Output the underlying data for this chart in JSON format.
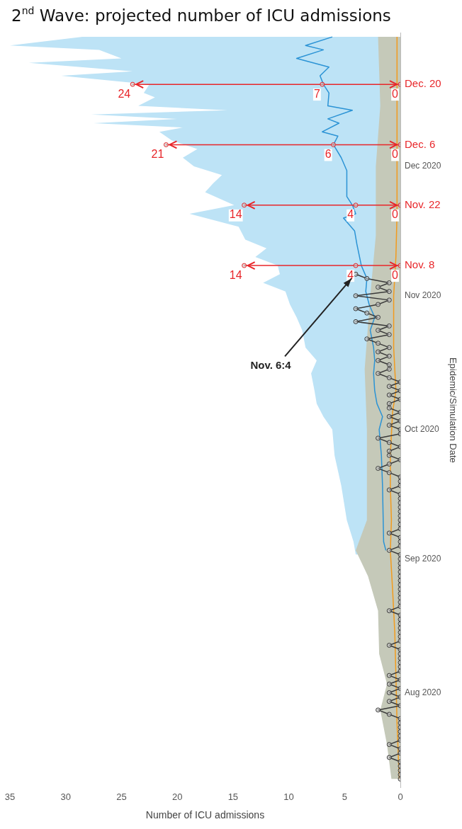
{
  "chart_data": {
    "type": "line",
    "title": "2$^{nd}$ Wave: projected number of ICU admissions",
    "orientation": "horizontal",
    "xlabel": "Number of ICU admissions",
    "ylabel": "Epidemic/Simulation Date",
    "ylim": [
      "2020-07-10",
      "2021-01-01"
    ],
    "yticks": [
      {
        "value": "2020-08-01",
        "label": "Aug 2020"
      },
      {
        "value": "2020-09-01",
        "label": "Sep 2020"
      },
      {
        "value": "2020-10-01",
        "label": "Oct 2020"
      },
      {
        "value": "2020-11-01",
        "label": "Nov 2020"
      },
      {
        "value": "2020-12-01",
        "label": "Dec 2020"
      }
    ],
    "xlim": [
      35,
      0
    ],
    "xticks": [
      35,
      30,
      25,
      20,
      15,
      10,
      5,
      0
    ],
    "marker": "none",
    "series": [
      {
        "type": "area",
        "color": "#bde3f6",
        "x": [
          "2020-09-02",
          "2020-09-05",
          "2020-09-10",
          "2020-09-18",
          "2020-09-25",
          "2020-10-01",
          "2020-10-04",
          "2020-10-07",
          "2020-10-10",
          "2020-10-14",
          "2020-10-17",
          "2020-10-20",
          "2020-10-24",
          "2020-10-27",
          "2020-10-30",
          "2020-11-02",
          "2020-11-04",
          "2020-11-06",
          "2020-11-08",
          "2020-11-10",
          "2020-11-12",
          "2020-11-14",
          "2020-11-17",
          "2020-11-20",
          "2020-11-22",
          "2020-11-25",
          "2020-11-27",
          "2020-11-29",
          "2020-12-01",
          "2020-12-03",
          "2020-12-05",
          "2020-12-07",
          "2020-12-09",
          "2020-12-10",
          "2020-12-11",
          "2020-12-12",
          "2020-12-13",
          "2020-12-14",
          "2020-12-15",
          "2020-12-17",
          "2020-12-18",
          "2020-12-20",
          "2020-12-22",
          "2020-12-23",
          "2020-12-25",
          "2020-12-26",
          "2020-12-28",
          "2020-12-29",
          "2020-12-31"
        ],
        "values": [
          4.0,
          4.2,
          4.8,
          5.3,
          5.9,
          6.1,
          6.9,
          7.5,
          7.7,
          8.0,
          7.5,
          8.5,
          8.8,
          9.3,
          9.9,
          10.3,
          12.3,
          10.8,
          11.0,
          13.0,
          12.0,
          13.9,
          14.5,
          18.9,
          14.9,
          17.5,
          16.8,
          16.0,
          18.5,
          19.5,
          18.2,
          20.5,
          21.6,
          19.5,
          27.5,
          20.0,
          27.7,
          15.5,
          23.5,
          22.0,
          23.0,
          22.5,
          30.4,
          24.0,
          33.3,
          25.0,
          27.0,
          35.0,
          28.5
        ]
      },
      {
        "type": "area",
        "color": "#c5c9b9",
        "x": [
          "2020-07-12",
          "2020-07-20",
          "2020-07-28",
          "2020-08-03",
          "2020-08-10",
          "2020-08-20",
          "2020-08-28",
          "2020-09-03",
          "2020-09-10",
          "2020-09-20",
          "2020-10-01",
          "2020-10-15",
          "2020-11-01",
          "2020-11-15",
          "2020-12-01",
          "2020-12-15",
          "2020-12-31"
        ],
        "values": [
          0.8,
          1.2,
          1.8,
          1.2,
          1.9,
          2.0,
          2.9,
          4.0,
          3.0,
          3.0,
          3.0,
          3.2,
          2.7,
          2.2,
          2.2,
          1.8,
          2.0
        ]
      },
      {
        "color": "#f29b1d",
        "x": [
          "2020-07-12",
          "2020-07-25",
          "2020-08-05",
          "2020-08-15",
          "2020-08-25",
          "2020-09-03",
          "2020-09-10",
          "2020-09-18",
          "2020-09-25",
          "2020-10-05",
          "2020-10-10",
          "2020-10-20",
          "2020-11-01",
          "2020-11-10",
          "2020-11-20",
          "2020-12-01",
          "2020-12-15",
          "2020-12-31"
        ],
        "values": [
          0.1,
          0.3,
          0.4,
          0.5,
          0.7,
          0.9,
          0.8,
          0.9,
          0.9,
          0.7,
          0.4,
          0.6,
          0.6,
          0.4,
          0.3,
          0.3,
          0.3,
          0.3
        ]
      },
      {
        "color": "#2b93d5",
        "x": [
          "2020-09-03",
          "2020-09-05",
          "2020-09-18",
          "2020-09-25",
          "2020-10-01",
          "2020-10-04",
          "2020-10-07",
          "2020-10-10",
          "2020-10-14",
          "2020-10-17",
          "2020-10-20",
          "2020-10-24",
          "2020-10-27",
          "2020-10-30",
          "2020-11-02",
          "2020-11-05",
          "2020-11-08",
          "2020-11-13",
          "2020-11-16",
          "2020-11-19",
          "2020-11-20",
          "2020-11-22",
          "2020-11-24",
          "2020-11-30",
          "2020-12-03",
          "2020-12-06",
          "2020-12-08",
          "2020-12-09",
          "2020-12-11",
          "2020-12-12",
          "2020-12-14",
          "2020-12-15",
          "2020-12-18",
          "2020-12-20",
          "2020-12-22",
          "2020-12-24",
          "2020-12-26",
          "2020-12-28",
          "2020-12-29",
          "2020-12-31"
        ],
        "values": [
          1.3,
          1.5,
          1.6,
          1.7,
          1.9,
          1.6,
          2.1,
          2.3,
          2.4,
          2.3,
          2.4,
          2.7,
          2.3,
          2.8,
          3.1,
          3.0,
          3.5,
          3.9,
          4.1,
          5.1,
          4.0,
          4.3,
          4.8,
          4.8,
          5.3,
          6.0,
          5.6,
          7.0,
          5.5,
          6.5,
          4.3,
          6.5,
          6.4,
          6.9,
          7.2,
          6.4,
          9.3,
          6.9,
          8.5,
          6.1
        ]
      },
      {
        "color": "#3a3a3a",
        "marker": "circle",
        "x": [
          "2020-07-12",
          "2020-07-13",
          "2020-07-14",
          "2020-07-15",
          "2020-07-16",
          "2020-07-17",
          "2020-07-18",
          "2020-07-19",
          "2020-07-20",
          "2020-07-21",
          "2020-07-22",
          "2020-07-23",
          "2020-07-24",
          "2020-07-25",
          "2020-07-26",
          "2020-07-27",
          "2020-07-28",
          "2020-07-29",
          "2020-07-30",
          "2020-07-31",
          "2020-08-01",
          "2020-08-02",
          "2020-08-03",
          "2020-08-04",
          "2020-08-05",
          "2020-08-06",
          "2020-08-07",
          "2020-08-08",
          "2020-08-09",
          "2020-08-10",
          "2020-08-11",
          "2020-08-12",
          "2020-08-13",
          "2020-08-14",
          "2020-08-15",
          "2020-08-16",
          "2020-08-17",
          "2020-08-18",
          "2020-08-19",
          "2020-08-20",
          "2020-08-21",
          "2020-08-22",
          "2020-08-23",
          "2020-08-24",
          "2020-08-25",
          "2020-08-26",
          "2020-08-27",
          "2020-08-28",
          "2020-08-29",
          "2020-08-30",
          "2020-08-31",
          "2020-09-01",
          "2020-09-02",
          "2020-09-03",
          "2020-09-04",
          "2020-09-05",
          "2020-09-06",
          "2020-09-07",
          "2020-09-08",
          "2020-09-09",
          "2020-09-10",
          "2020-09-11",
          "2020-09-12",
          "2020-09-13",
          "2020-09-14",
          "2020-09-15",
          "2020-09-16",
          "2020-09-17",
          "2020-09-18",
          "2020-09-19",
          "2020-09-20",
          "2020-09-21",
          "2020-09-22",
          "2020-09-23",
          "2020-09-24",
          "2020-09-25",
          "2020-09-26",
          "2020-09-27",
          "2020-09-28",
          "2020-09-29",
          "2020-09-30",
          "2020-10-01",
          "2020-10-02",
          "2020-10-03",
          "2020-10-04",
          "2020-10-05",
          "2020-10-06",
          "2020-10-07",
          "2020-10-08",
          "2020-10-09",
          "2020-10-10",
          "2020-10-11",
          "2020-10-12",
          "2020-10-13",
          "2020-10-14",
          "2020-10-15",
          "2020-10-16",
          "2020-10-17",
          "2020-10-18",
          "2020-10-19",
          "2020-10-20",
          "2020-10-21",
          "2020-10-22",
          "2020-10-23",
          "2020-10-24",
          "2020-10-25",
          "2020-10-26",
          "2020-10-27",
          "2020-10-28",
          "2020-10-29",
          "2020-10-30",
          "2020-10-31",
          "2020-11-01",
          "2020-11-02",
          "2020-11-03",
          "2020-11-04",
          "2020-11-05",
          "2020-11-06"
        ],
        "values": [
          0,
          0,
          0,
          0,
          0,
          1,
          0,
          0,
          1,
          0,
          0,
          0,
          0,
          0,
          0,
          1,
          2,
          0,
          1,
          0,
          1,
          0,
          1,
          0,
          1,
          0,
          0,
          0,
          0,
          0,
          0,
          1,
          0,
          0,
          0,
          0,
          0,
          0,
          0,
          1,
          0,
          0,
          0,
          0,
          0,
          0,
          0,
          0,
          0,
          0,
          0,
          0,
          0,
          1,
          0,
          0,
          0,
          1,
          0,
          0,
          0,
          0,
          0,
          0,
          0,
          0,
          0,
          1,
          0,
          0,
          0,
          1,
          2,
          1,
          0,
          1,
          1,
          0,
          1,
          2,
          0,
          0,
          1,
          0,
          1,
          0,
          1,
          1,
          0,
          1,
          0,
          1,
          0,
          1,
          2,
          1,
          1,
          2,
          1,
          2,
          1,
          2,
          3,
          1,
          2,
          1,
          4,
          2,
          3,
          4,
          2,
          1,
          4,
          1,
          2,
          1,
          3,
          4
        ]
      },
      {
        "color": "#e8262a",
        "marker": "circle",
        "x": [
          "2020-11-08",
          "2020-11-08",
          "2020-11-08"
        ],
        "values": [
          0,
          4,
          14
        ],
        "value_labels": [
          "0",
          "4",
          "14"
        ]
      },
      {
        "color": "#e8262a",
        "marker": "circle",
        "x": [
          "2020-11-22",
          "2020-11-22",
          "2020-11-22"
        ],
        "values": [
          0,
          4,
          14
        ],
        "value_labels": [
          "0",
          "4",
          "14"
        ]
      },
      {
        "color": "#e8262a",
        "marker": "circle",
        "x": [
          "2020-12-06",
          "2020-12-06",
          "2020-12-06"
        ],
        "values": [
          0,
          6,
          21
        ],
        "value_labels": [
          "0",
          "6",
          "21"
        ]
      },
      {
        "color": "#e8262a",
        "marker": "circle",
        "x": [
          "2020-12-20",
          "2020-12-20",
          "2020-12-20"
        ],
        "values": [
          0,
          7,
          24
        ],
        "value_labels": [
          "0",
          "7",
          "24"
        ]
      }
    ],
    "annotations": [
      {
        "text": "Nov. 6:4",
        "x": 4,
        "y": "2020-11-06"
      },
      "Nov. 8",
      "Nov. 22",
      "Dec. 6",
      "Dec. 20"
    ]
  }
}
